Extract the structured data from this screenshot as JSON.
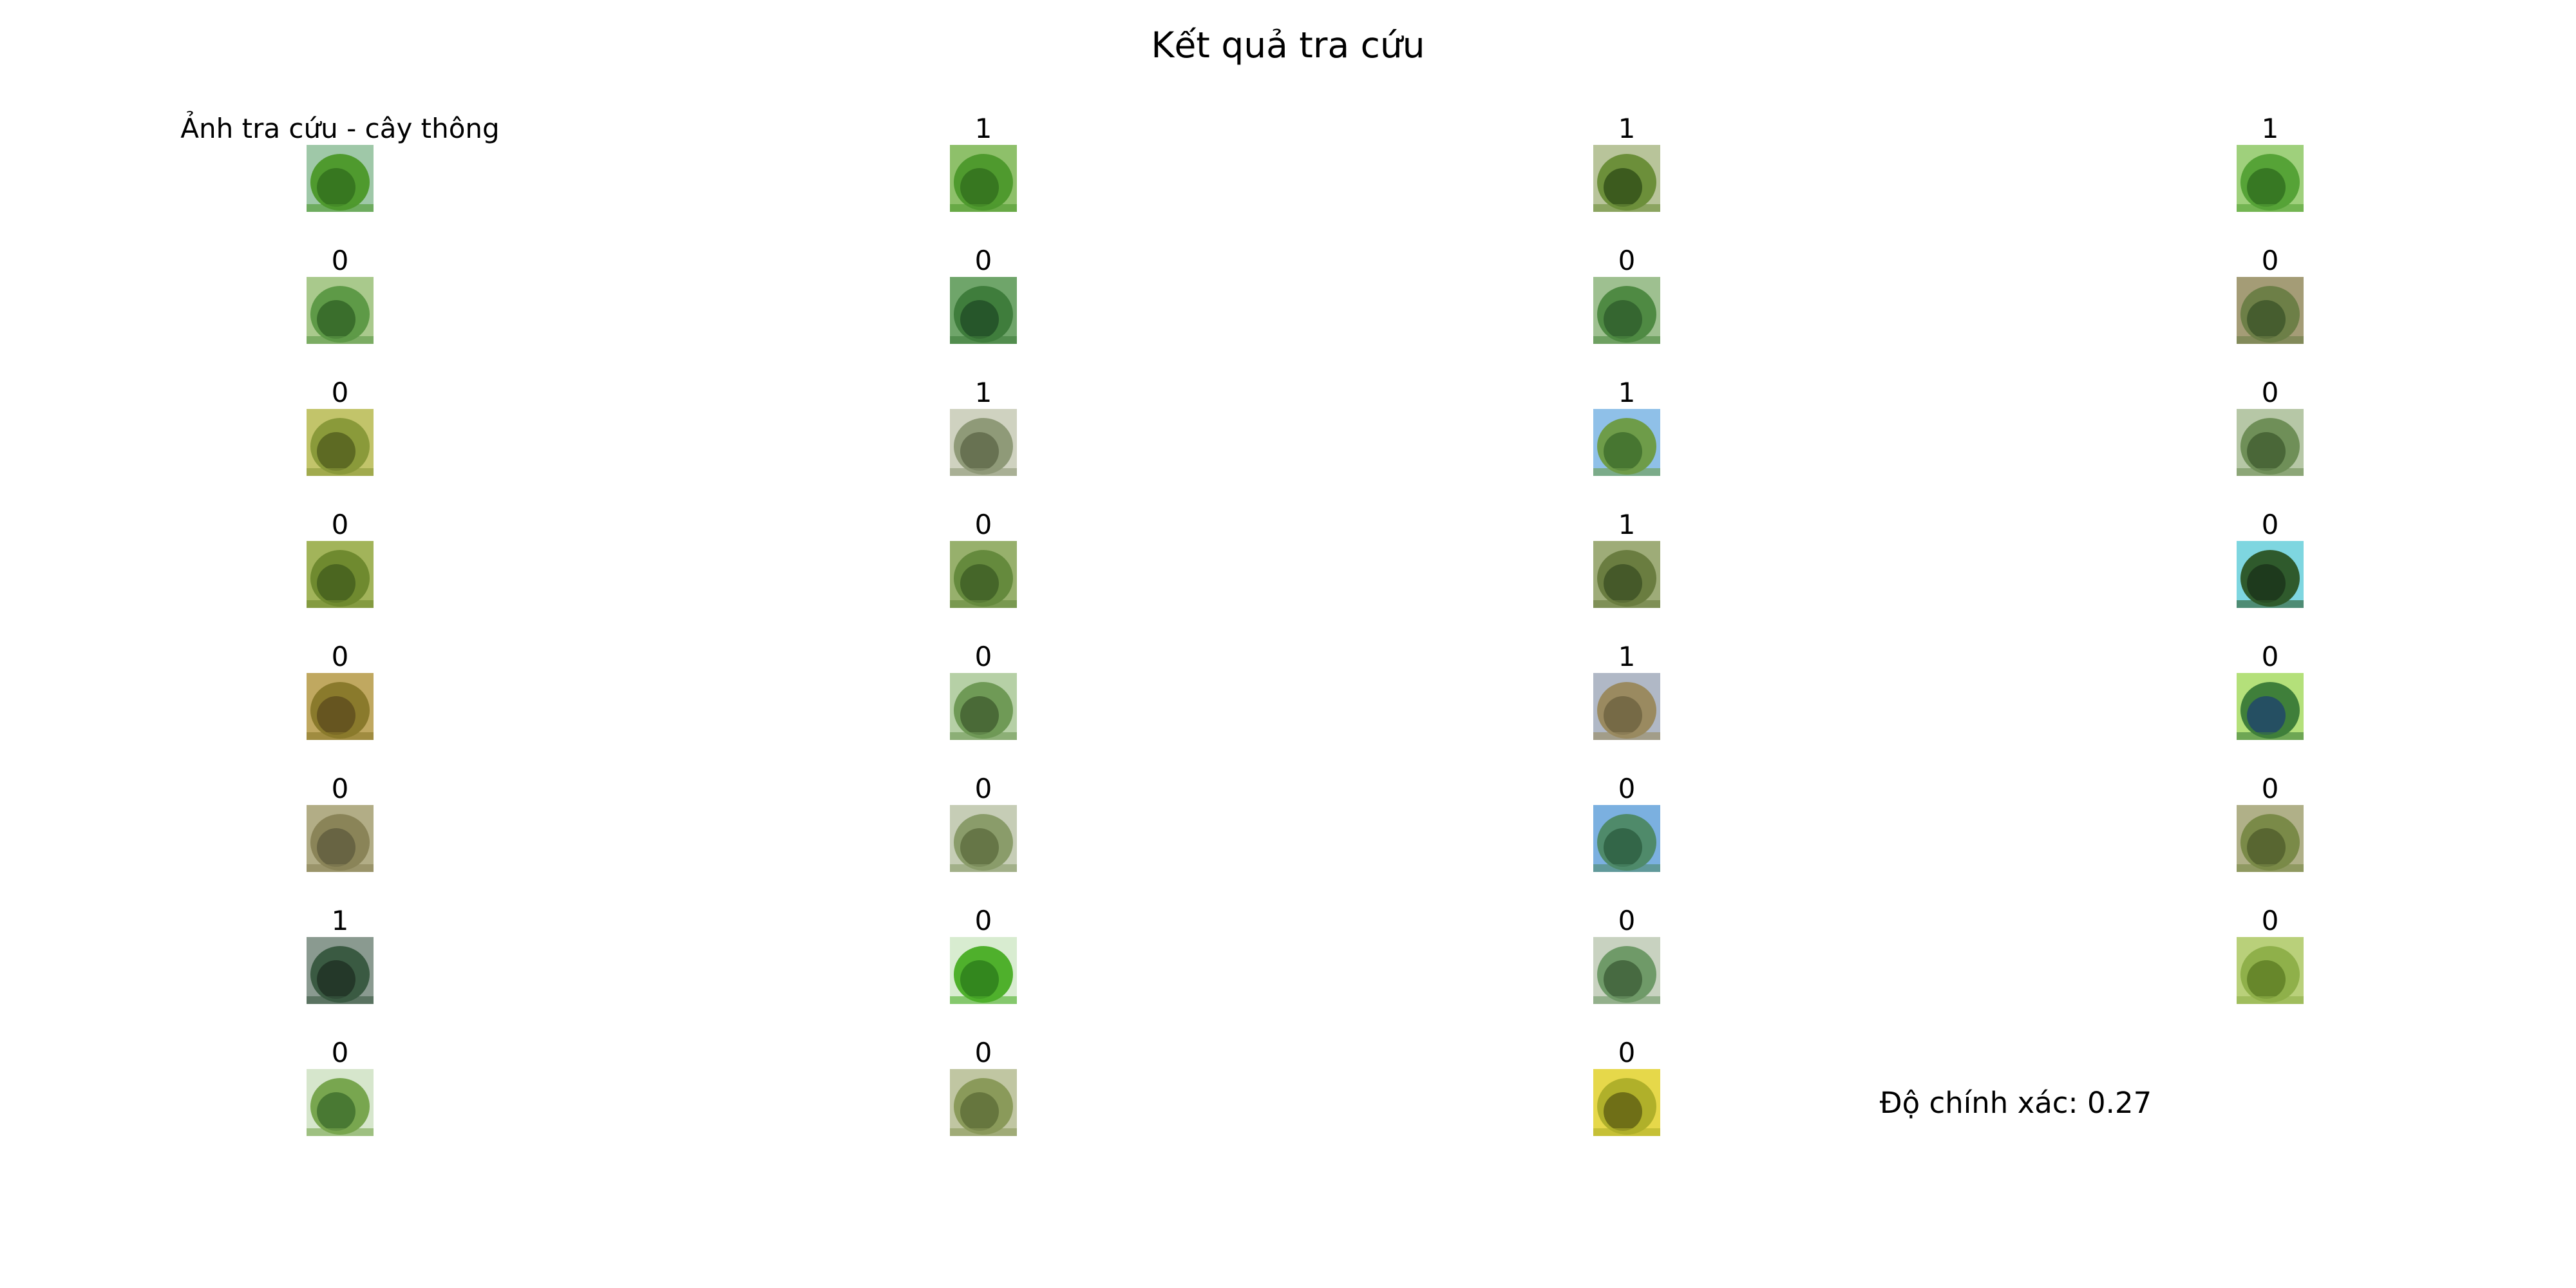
{
  "title": "Kết quả tra cứu",
  "query_label": "Ảnh tra cứu - cây thông",
  "accuracy_text": "Độ chính xác: 0.27",
  "results": [
    {
      "label": "1",
      "colors": [
        "#2f6b1c",
        "#4f9a2e",
        "#8ec06a"
      ]
    },
    {
      "label": "1",
      "colors": [
        "#2c4a16",
        "#6c8f3a",
        "#b8c49a"
      ]
    },
    {
      "label": "1",
      "colors": [
        "#2d6a1e",
        "#56a337",
        "#9fd07c"
      ]
    },
    {
      "label": "0",
      "colors": [
        "#2f5f23",
        "#5e9a47",
        "#a9c98c"
      ]
    },
    {
      "label": "0",
      "colors": [
        "#1f4a24",
        "#3f7d3c",
        "#6fa56a"
      ]
    },
    {
      "label": "0",
      "colors": [
        "#2c5a2a",
        "#4f8a43",
        "#9ec090"
      ]
    },
    {
      "label": "0",
      "colors": [
        "#3a5127",
        "#6d7f47",
        "#a49c76"
      ]
    },
    {
      "label": "0",
      "colors": [
        "#4e5a1c",
        "#8a9a3a",
        "#c2c46a"
      ]
    },
    {
      "label": "1",
      "colors": [
        "#5b6446",
        "#8f9a78",
        "#cfd2c0"
      ]
    },
    {
      "label": "1",
      "colors": [
        "#3b6a2a",
        "#6e9c49",
        "#8fc0e8"
      ]
    },
    {
      "label": "0",
      "colors": [
        "#3e5a2e",
        "#6f8f58",
        "#b6c7a6"
      ]
    },
    {
      "label": "0",
      "colors": [
        "#3f5a1c",
        "#6f8a2f",
        "#a2b45a"
      ]
    },
    {
      "label": "0",
      "colors": [
        "#3b5a23",
        "#658a3d",
        "#97b06c"
      ]
    },
    {
      "label": "1",
      "colors": [
        "#3a4d22",
        "#6a7d40",
        "#9eac78"
      ]
    },
    {
      "label": "0",
      "colors": [
        "#1a3018",
        "#2f5a2c",
        "#7ed6e0"
      ]
    },
    {
      "label": "0",
      "colors": [
        "#5a4a1c",
        "#8a7a2c",
        "#c0a860"
      ]
    },
    {
      "label": "0",
      "colors": [
        "#3d5a2e",
        "#6f9a56",
        "#b6d0a6"
      ]
    },
    {
      "label": "1",
      "colors": [
        "#6a5f3e",
        "#9a8a60",
        "#b0b8c6"
      ]
    },
    {
      "label": "0",
      "colors": [
        "#1e3f70",
        "#3f7f3a",
        "#b4e07a"
      ]
    },
    {
      "label": "0",
      "colors": [
        "#5c5a3c",
        "#8a8458",
        "#b2ad86"
      ]
    },
    {
      "label": "0",
      "colors": [
        "#5a6a3c",
        "#8a9c6a",
        "#c6cdb6"
      ]
    },
    {
      "label": "0",
      "colors": [
        "#2a5a3e",
        "#4f8a6a",
        "#7bb0e0"
      ]
    },
    {
      "label": "0",
      "colors": [
        "#4e5a2a",
        "#7a8a48",
        "#b0b088"
      ]
    },
    {
      "label": "1",
      "colors": [
        "#1e2e22",
        "#3a5a42",
        "#8a9a90"
      ]
    },
    {
      "label": "0",
      "colors": [
        "#2a7a1a",
        "#4fb02c",
        "#d8ecd0"
      ]
    },
    {
      "label": "0",
      "colors": [
        "#3a5a34",
        "#6f9a68",
        "#c8d2c0"
      ]
    },
    {
      "label": "0",
      "colors": [
        "#5a7a22",
        "#8fb04a",
        "#b9d07a"
      ]
    },
    {
      "label": "0",
      "colors": [
        "#3a6a2a",
        "#78a64f",
        "#d6e6cc"
      ]
    },
    {
      "label": "0",
      "colors": [
        "#5a6a36",
        "#8a9a5a",
        "#c0c6a2"
      ]
    },
    {
      "label": "0",
      "colors": [
        "#5a5a12",
        "#b0b02a",
        "#e6d84a"
      ]
    }
  ],
  "query_colors": [
    "#2f6b1c",
    "#4f9a2e",
    "#9fc8a8"
  ]
}
